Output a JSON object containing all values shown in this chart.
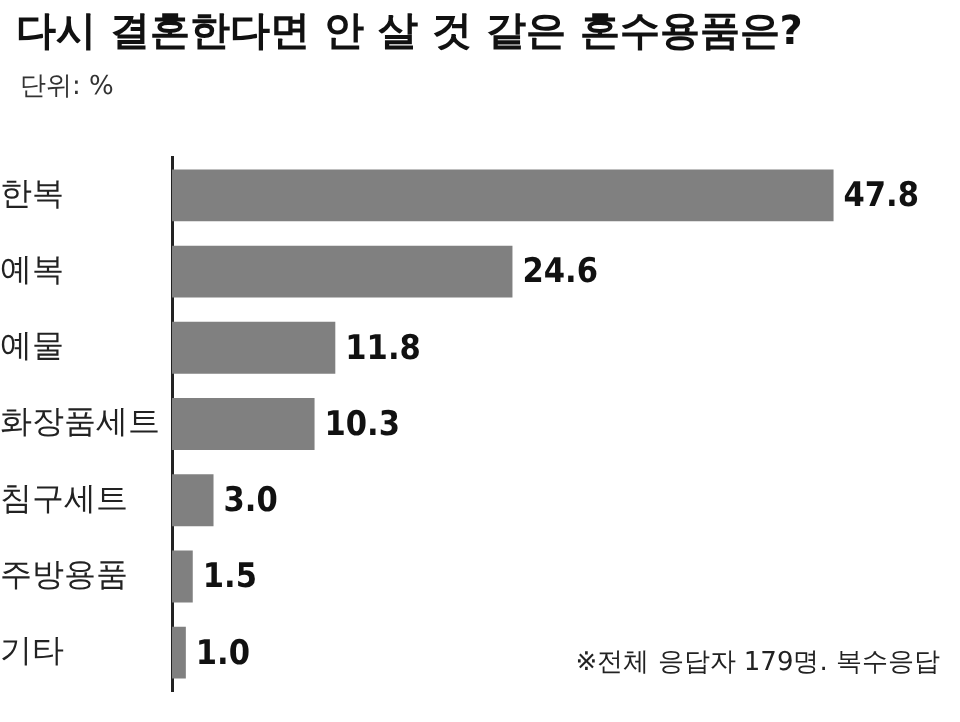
{
  "chart_data": {
    "type": "bar",
    "orientation": "horizontal",
    "title": "다시 결혼한다면 안 살 것 같은 혼수용품은?",
    "subtitle": "단위: %",
    "categories": [
      "한복",
      "예복",
      "예물",
      "화장품세트",
      "침구세트",
      "주방용품",
      "기타"
    ],
    "values": [
      47.8,
      24.6,
      11.8,
      10.3,
      3.0,
      1.5,
      1.0
    ],
    "color": "#808080",
    "value_labels": [
      "47.8",
      "24.6",
      "11.8",
      "10.3",
      "3.0",
      "1.5",
      "1.0"
    ],
    "tick_labels": "y",
    "legend": false,
    "annotations": [
      "※전체 응답자 179명. 복수응답"
    ]
  }
}
